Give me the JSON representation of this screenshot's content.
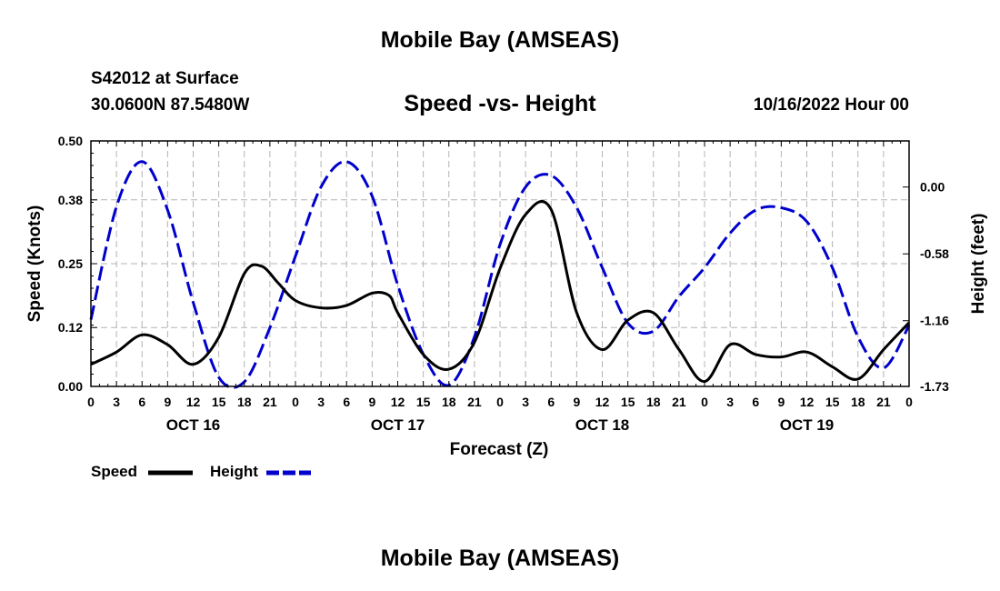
{
  "header": {
    "title": "Mobile Bay (AMSEAS)",
    "station": "S42012 at Surface",
    "coordinates": "30.0600N  87.5480W",
    "chart_title": "Speed -vs- Height",
    "datetime": "10/16/2022 Hour 00"
  },
  "footer": {
    "title": "Mobile Bay (AMSEAS)"
  },
  "chart_data": {
    "type": "line",
    "title": "Speed -vs- Height",
    "xlabel": "Forecast (Z)",
    "ylabel": "Speed (Knots)",
    "y2label": "Height (feet)",
    "xlim": [
      0,
      96
    ],
    "ylim": [
      0,
      0.5
    ],
    "y2lim": [
      -1.73,
      0.4
    ],
    "xticks": [
      0,
      3,
      6,
      9,
      12,
      15,
      18,
      21,
      24,
      27,
      30,
      33,
      36,
      39,
      42,
      45,
      48,
      51,
      54,
      57,
      60,
      63,
      66,
      69,
      72,
      75,
      78,
      81,
      84,
      87,
      90,
      93,
      96
    ],
    "xtick_labels": [
      "0",
      "3",
      "6",
      "9",
      "12",
      "15",
      "18",
      "21",
      "0",
      "3",
      "6",
      "9",
      "12",
      "15",
      "18",
      "21",
      "0",
      "3",
      "6",
      "9",
      "12",
      "15",
      "18",
      "21",
      "0",
      "3",
      "6",
      "9",
      "12",
      "15",
      "18",
      "21",
      "0"
    ],
    "day_labels": [
      {
        "label": "OCT 16",
        "hour": 12
      },
      {
        "label": "OCT 17",
        "hour": 36
      },
      {
        "label": "OCT 18",
        "hour": 60
      },
      {
        "label": "OCT 19",
        "hour": 84
      }
    ],
    "yticks": [
      0.0,
      0.12,
      0.25,
      0.38,
      0.5
    ],
    "ytick_labels": [
      "0.00",
      "0.12",
      "0.25",
      "0.38",
      "0.50"
    ],
    "y2ticks": [
      -1.73,
      -1.16,
      -0.58,
      0.0
    ],
    "y2tick_labels": [
      "-1.73",
      "-1.16",
      "-0.58",
      "0.00"
    ],
    "grid": true,
    "legend": "bottom-left",
    "series": [
      {
        "name": "Speed",
        "axis": "left",
        "color": "#000000",
        "dash": "solid",
        "x": [
          0,
          3,
          6,
          9,
          12,
          15,
          18,
          20,
          22,
          24,
          27,
          30,
          33,
          35,
          36,
          39,
          42,
          45,
          48,
          51,
          54,
          57,
          60,
          63,
          66,
          69,
          72,
          75,
          78,
          81,
          84,
          87,
          90,
          93,
          96
        ],
        "values": [
          0.045,
          0.07,
          0.105,
          0.085,
          0.045,
          0.1,
          0.23,
          0.245,
          0.21,
          0.175,
          0.16,
          0.165,
          0.19,
          0.185,
          0.15,
          0.065,
          0.035,
          0.09,
          0.24,
          0.35,
          0.36,
          0.15,
          0.075,
          0.135,
          0.15,
          0.075,
          0.01,
          0.085,
          0.065,
          0.06,
          0.07,
          0.04,
          0.015,
          0.075,
          0.13
        ]
      },
      {
        "name": "Height",
        "axis": "right",
        "color": "#0000cc",
        "dash": "dashed",
        "x": [
          0,
          3,
          6,
          9,
          12,
          15,
          18,
          21,
          24,
          27,
          30,
          33,
          36,
          39,
          42,
          45,
          48,
          51,
          54,
          57,
          60,
          63,
          66,
          69,
          72,
          75,
          78,
          81,
          84,
          87,
          90,
          93,
          96
        ],
        "values": [
          -1.15,
          -0.17,
          0.22,
          -0.2,
          -1.0,
          -1.65,
          -1.69,
          -1.22,
          -0.6,
          0.0,
          0.22,
          -0.08,
          -0.85,
          -1.45,
          -1.72,
          -1.3,
          -0.5,
          0.0,
          0.1,
          -0.18,
          -0.7,
          -1.18,
          -1.25,
          -0.95,
          -0.7,
          -0.4,
          -0.2,
          -0.18,
          -0.3,
          -0.7,
          -1.3,
          -1.57,
          -1.2
        ]
      }
    ]
  }
}
